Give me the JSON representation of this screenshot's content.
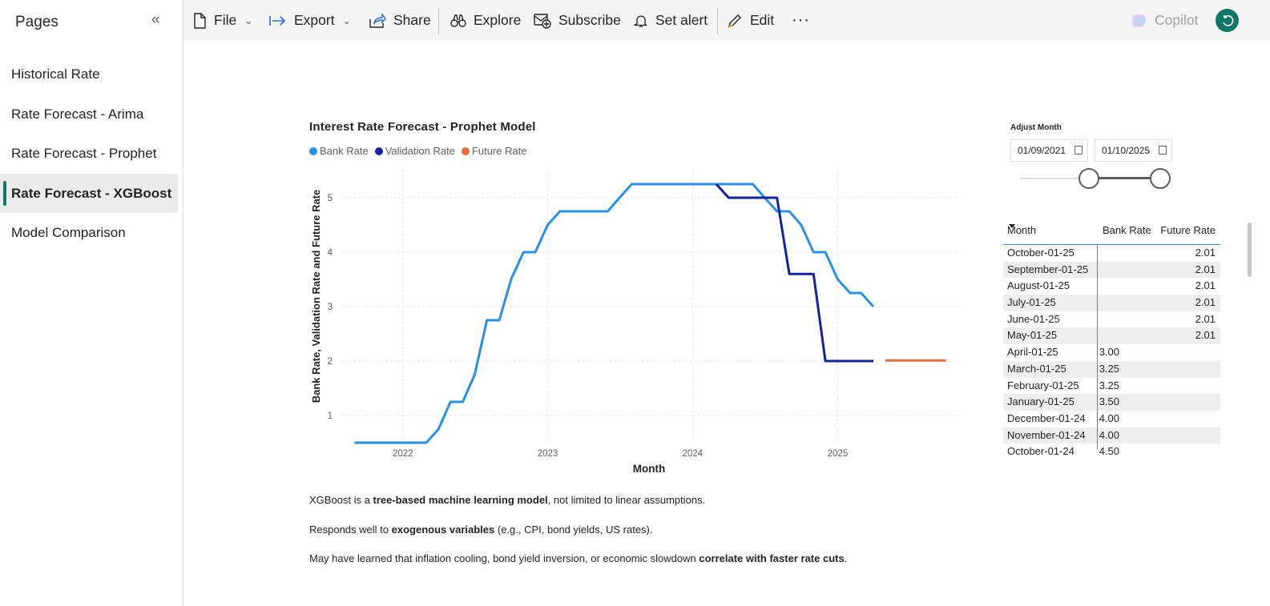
{
  "sidebar": {
    "title": "Pages",
    "collapse_glyph": "«",
    "items": [
      {
        "label": "Historical Rate",
        "active": false
      },
      {
        "label": "Rate Forecast - Arima",
        "active": false
      },
      {
        "label": "Rate Forecast - Prophet",
        "active": false
      },
      {
        "label": "Rate Forecast - XGBoost",
        "active": true
      },
      {
        "label": "Model Comparison",
        "active": false
      }
    ]
  },
  "toolbar": {
    "file": "File",
    "export": "Export",
    "share": "Share",
    "explore": "Explore",
    "subscribe": "Subscribe",
    "set_alert": "Set alert",
    "edit": "Edit",
    "more": "···",
    "copilot": "Copilot"
  },
  "colors": {
    "accent": "#117865",
    "bank_rate": "#2b8fe4",
    "validation_rate": "#13239a",
    "future_rate": "#e4703f"
  },
  "chart": {
    "title": "Interest Rate Forecast - Prophet Model",
    "legend": [
      "Bank Rate",
      "Validation Rate",
      "Future Rate"
    ]
  },
  "chart_data": {
    "type": "line",
    "title": "Interest Rate Forecast - Prophet Model",
    "xlabel": "Month",
    "ylabel": "Bank Rate, Validation Rate and Future Rate",
    "x_ticks": [
      "2022",
      "2023",
      "2024",
      "2025"
    ],
    "y_ticks": [
      1,
      2,
      3,
      4,
      5
    ],
    "xlim": [
      "2021-08-01",
      "2025-11-01"
    ],
    "ylim": [
      0.5,
      5.5
    ],
    "grid": true,
    "legend_position": "top-left",
    "series": [
      {
        "name": "Bank Rate",
        "points": [
          [
            "2021-09-01",
            0.5
          ],
          [
            "2021-10-01",
            0.5
          ],
          [
            "2021-11-01",
            0.5
          ],
          [
            "2021-12-01",
            0.5
          ],
          [
            "2022-01-01",
            0.5
          ],
          [
            "2022-02-01",
            0.5
          ],
          [
            "2022-03-01",
            0.5
          ],
          [
            "2022-04-01",
            0.75
          ],
          [
            "2022-05-01",
            1.25
          ],
          [
            "2022-06-01",
            1.25
          ],
          [
            "2022-07-01",
            1.75
          ],
          [
            "2022-08-01",
            2.75
          ],
          [
            "2022-09-01",
            2.75
          ],
          [
            "2022-10-01",
            3.5
          ],
          [
            "2022-11-01",
            4.0
          ],
          [
            "2022-12-01",
            4.0
          ],
          [
            "2023-01-01",
            4.5
          ],
          [
            "2023-02-01",
            4.75
          ],
          [
            "2023-03-01",
            4.75
          ],
          [
            "2023-04-01",
            4.75
          ],
          [
            "2023-05-01",
            4.75
          ],
          [
            "2023-06-01",
            4.75
          ],
          [
            "2023-07-01",
            5.0
          ],
          [
            "2023-08-01",
            5.25
          ],
          [
            "2023-09-01",
            5.25
          ],
          [
            "2023-10-01",
            5.25
          ],
          [
            "2023-11-01",
            5.25
          ],
          [
            "2023-12-01",
            5.25
          ],
          [
            "2024-01-01",
            5.25
          ],
          [
            "2024-02-01",
            5.25
          ],
          [
            "2024-03-01",
            5.25
          ],
          [
            "2024-04-01",
            5.25
          ],
          [
            "2024-05-01",
            5.25
          ],
          [
            "2024-06-01",
            5.25
          ],
          [
            "2024-07-01",
            5.0
          ],
          [
            "2024-08-01",
            4.75
          ],
          [
            "2024-09-01",
            4.75
          ],
          [
            "2024-10-01",
            4.5
          ],
          [
            "2024-11-01",
            4.0
          ],
          [
            "2024-12-01",
            4.0
          ],
          [
            "2025-01-01",
            3.5
          ],
          [
            "2025-02-01",
            3.25
          ],
          [
            "2025-03-01",
            3.25
          ],
          [
            "2025-04-01",
            3.0
          ]
        ]
      },
      {
        "name": "Validation Rate",
        "points": [
          [
            "2024-03-01",
            5.25
          ],
          [
            "2024-04-01",
            5.0
          ],
          [
            "2024-05-01",
            5.0
          ],
          [
            "2024-06-01",
            5.0
          ],
          [
            "2024-07-01",
            5.0
          ],
          [
            "2024-08-01",
            5.0
          ],
          [
            "2024-09-01",
            3.6
          ],
          [
            "2024-10-01",
            3.6
          ],
          [
            "2024-11-01",
            3.6
          ],
          [
            "2024-12-01",
            2.0
          ],
          [
            "2025-01-01",
            2.0
          ],
          [
            "2025-02-01",
            2.0
          ],
          [
            "2025-03-01",
            2.0
          ],
          [
            "2025-04-01",
            2.0
          ]
        ]
      },
      {
        "name": "Future Rate",
        "points": [
          [
            "2025-05-01",
            2.01
          ],
          [
            "2025-06-01",
            2.01
          ],
          [
            "2025-07-01",
            2.01
          ],
          [
            "2025-08-01",
            2.01
          ],
          [
            "2025-09-01",
            2.01
          ],
          [
            "2025-10-01",
            2.01
          ]
        ]
      }
    ]
  },
  "slicer": {
    "title": "Adjust Month",
    "start": "01/09/2021",
    "end": "01/10/2025"
  },
  "table": {
    "headers": [
      "Month",
      "Bank Rate",
      "Future Rate"
    ],
    "rows": [
      {
        "month": "October-01-25",
        "bank": "",
        "future": "2.01"
      },
      {
        "month": "September-01-25",
        "bank": "",
        "future": "2.01"
      },
      {
        "month": "August-01-25",
        "bank": "",
        "future": "2.01"
      },
      {
        "month": "July-01-25",
        "bank": "",
        "future": "2.01"
      },
      {
        "month": "June-01-25",
        "bank": "",
        "future": "2.01"
      },
      {
        "month": "May-01-25",
        "bank": "",
        "future": "2.01"
      },
      {
        "month": "April-01-25",
        "bank": "3.00",
        "future": ""
      },
      {
        "month": "March-01-25",
        "bank": "3.25",
        "future": ""
      },
      {
        "month": "February-01-25",
        "bank": "3.25",
        "future": ""
      },
      {
        "month": "January-01-25",
        "bank": "3.50",
        "future": ""
      },
      {
        "month": "December-01-24",
        "bank": "4.00",
        "future": ""
      },
      {
        "month": "November-01-24",
        "bank": "4.00",
        "future": ""
      },
      {
        "month": "October-01-24",
        "bank": "4.50",
        "future": ""
      }
    ]
  },
  "notes": [
    {
      "pre": "XGBoost is a ",
      "bold": "tree-based machine learning model",
      "post": ", not limited to linear assumptions."
    },
    {
      "pre": "Responds well to ",
      "bold": "exogenous variables",
      "post": " (e.g., CPI, bond yields, US rates)."
    },
    {
      "pre": "May have learned that inflation cooling, bond yield inversion, or economic slowdown ",
      "bold": "correlate with faster rate cuts",
      "post": "."
    }
  ]
}
